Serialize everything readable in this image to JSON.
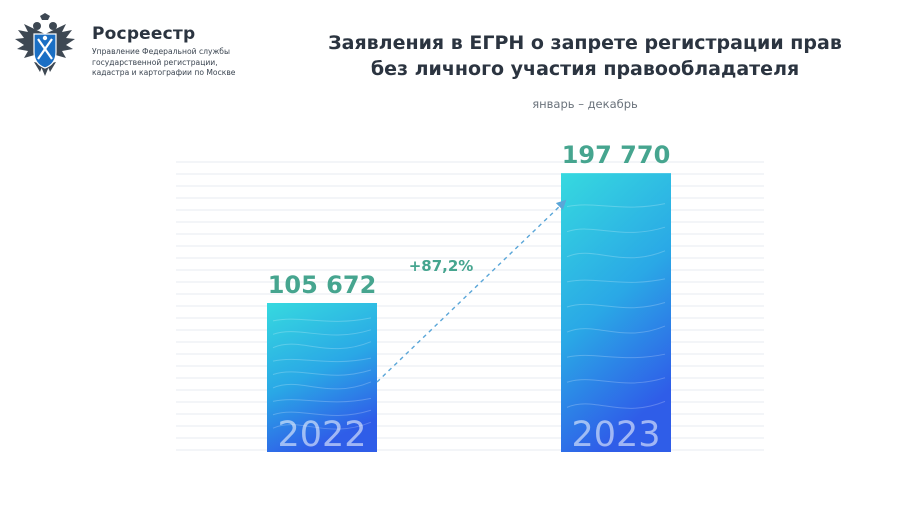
{
  "org": {
    "name": "Росреестр",
    "subtitle_lines": [
      "Управление Федеральной службы",
      "государственной регистрации,",
      "кадастра и картографии по Москве"
    ],
    "logo_icon": "double-headed-eagle-emblem"
  },
  "colors": {
    "accent_green": "#46a58f",
    "bar_top": "#36d9df",
    "bar_bottom": "#2f5de8",
    "title_text": "#2b3440"
  },
  "chart_data": {
    "type": "bar",
    "title_lines": [
      "Заявления в ЕГРН о запрете регистрации прав",
      "без личного участия правообладателя"
    ],
    "subtitle": "январь – декабрь",
    "xlabel": "",
    "ylabel": "",
    "categories": [
      "2022",
      "2023"
    ],
    "values": [
      105672,
      197770
    ],
    "value_labels": [
      "105 672",
      "197 770"
    ],
    "ylim": [
      0,
      200000
    ],
    "grid": true,
    "legend": "none",
    "annotations": [
      {
        "text": "+87,2%",
        "from": "2022",
        "to": "2023",
        "style": "dashed-arrow"
      }
    ]
  }
}
